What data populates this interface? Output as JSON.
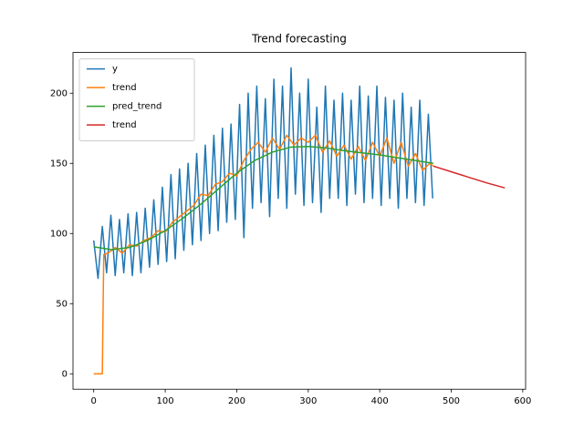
{
  "chart_data": {
    "type": "line",
    "title": "Trend forecasting",
    "xlim": [
      -29,
      604
    ],
    "ylim": [
      -11,
      229
    ],
    "xticks": [
      0,
      100,
      200,
      300,
      400,
      500,
      600
    ],
    "yticks": [
      0,
      50,
      100,
      150,
      200
    ],
    "legend": "upper left",
    "series": [
      {
        "name": "y",
        "color": "#1f77b4",
        "x": [
          0,
          6,
          12,
          18,
          24,
          30,
          36,
          42,
          48,
          54,
          60,
          66,
          72,
          78,
          84,
          90,
          96,
          102,
          108,
          114,
          120,
          126,
          132,
          138,
          144,
          150,
          156,
          162,
          168,
          174,
          180,
          186,
          192,
          198,
          204,
          210,
          216,
          222,
          228,
          234,
          240,
          246,
          252,
          258,
          264,
          270,
          276,
          282,
          288,
          294,
          300,
          306,
          312,
          318,
          324,
          330,
          336,
          342,
          348,
          354,
          360,
          366,
          372,
          378,
          384,
          390,
          396,
          402,
          408,
          414,
          420,
          426,
          432,
          438,
          444,
          450,
          456,
          462,
          468,
          474
        ],
        "values": [
          95,
          68,
          105,
          72,
          113,
          70,
          110,
          72,
          114,
          70,
          115,
          72,
          118,
          76,
          124,
          78,
          133,
          80,
          142,
          82,
          146,
          88,
          150,
          92,
          157,
          95,
          163,
          100,
          170,
          102,
          175,
          108,
          178,
          110,
          192,
          97,
          200,
          118,
          205,
          122,
          196,
          112,
          210,
          125,
          205,
          118,
          218,
          128,
          200,
          120,
          210,
          122,
          190,
          115,
          205,
          125,
          195,
          125,
          200,
          120,
          195,
          128,
          205,
          122,
          198,
          125,
          205,
          120,
          197,
          125,
          195,
          118,
          200,
          125,
          190,
          122,
          195,
          120,
          185,
          125
        ]
      },
      {
        "name": "trend",
        "color": "#ff7f0e",
        "x": [
          0,
          12,
          14,
          20,
          30,
          40,
          50,
          60,
          70,
          80,
          90,
          100,
          110,
          120,
          130,
          140,
          150,
          160,
          170,
          180,
          190,
          200,
          210,
          220,
          230,
          240,
          250,
          260,
          270,
          280,
          290,
          300,
          310,
          320,
          330,
          340,
          350,
          360,
          370,
          380,
          390,
          400,
          410,
          420,
          430,
          440,
          450,
          460,
          470,
          475
        ],
        "values": [
          0,
          0,
          85,
          86,
          90,
          86,
          92,
          91,
          95,
          97,
          102,
          101,
          108,
          112,
          116,
          120,
          128,
          127,
          135,
          137,
          143,
          141,
          152,
          160,
          165,
          158,
          168,
          160,
          170,
          163,
          168,
          165,
          170,
          158,
          166,
          155,
          163,
          153,
          162,
          152,
          165,
          155,
          168,
          150,
          165,
          148,
          157,
          145,
          150,
          148
        ]
      },
      {
        "name": "pred_trend",
        "color": "#2ca02c",
        "x": [
          0,
          25,
          50,
          75,
          100,
          125,
          150,
          175,
          200,
          225,
          250,
          275,
          300,
          325,
          350,
          375,
          400,
          425,
          450,
          475
        ],
        "values": [
          90.5,
          88.5,
          90,
          95,
          102,
          111,
          121,
          132,
          143,
          152,
          158,
          161.5,
          162,
          161,
          159,
          157.5,
          156,
          154,
          152,
          150
        ]
      },
      {
        "name": "trend",
        "color": "#d62728",
        "x": [
          475,
          500,
          525,
          550,
          575
        ],
        "values": [
          148,
          144,
          140,
          136,
          132.5
        ]
      }
    ]
  }
}
